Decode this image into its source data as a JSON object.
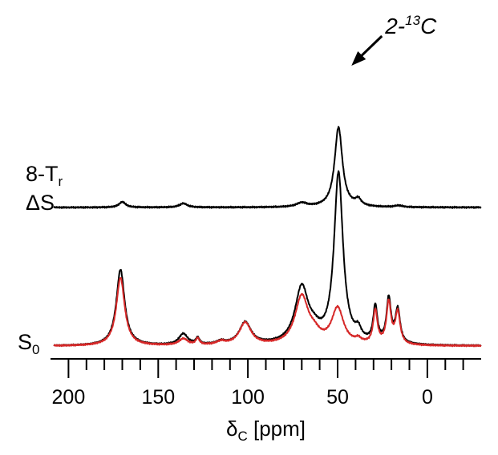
{
  "chart_data": {
    "type": "line",
    "title": "",
    "xlabel": "δC [ppm]",
    "xlabel_main": "δ",
    "xlabel_sub": "C",
    "xlabel_unit": " [ppm]",
    "xlim": [
      210,
      -30
    ],
    "x_reversed": true,
    "x_ticks": [
      200,
      150,
      100,
      50,
      0
    ],
    "x_minor_step": 10,
    "grid": false,
    "colors": {
      "black": "#000000",
      "red": "#d62828"
    },
    "trace_labels": {
      "delta_s": {
        "line1_main": "8-T",
        "line1_sub": "r",
        "line2": "ΔS"
      },
      "s0": {
        "main": "S",
        "sub": "0"
      }
    },
    "annotation": {
      "prefix": "2-",
      "superscript": "13",
      "suffix": "C",
      "points_to_ppm": 49
    },
    "series": [
      {
        "id": "delta_s",
        "color": "#000000",
        "baseline": 0,
        "peaks": [
          {
            "ppm": 49.5,
            "height": 100,
            "width": 2.6
          },
          {
            "ppm": 38.5,
            "height": 8,
            "width": 2.0
          },
          {
            "ppm": 170,
            "height": 7,
            "width": 2.2
          },
          {
            "ppm": 136,
            "height": 5,
            "width": 2.6
          },
          {
            "ppm": 70,
            "height": 5,
            "width": 3.5
          },
          {
            "ppm": 16,
            "height": 2,
            "width": 2.5
          }
        ]
      },
      {
        "id": "s0_black",
        "color": "#000000",
        "baseline": 0,
        "peaks": [
          {
            "ppm": 49.5,
            "height": 213,
            "width": 3.0
          },
          {
            "ppm": 171,
            "height": 95,
            "width": 2.8
          },
          {
            "ppm": 70,
            "height": 70,
            "width": 4.5
          },
          {
            "ppm": 63,
            "height": 10,
            "width": 4.0
          },
          {
            "ppm": 101.5,
            "height": 28,
            "width": 4.0
          },
          {
            "ppm": 136,
            "height": 14,
            "width": 3.0
          },
          {
            "ppm": 29,
            "height": 45,
            "width": 1.4
          },
          {
            "ppm": 21.5,
            "height": 55,
            "width": 1.5
          },
          {
            "ppm": 16.5,
            "height": 42,
            "width": 1.6
          },
          {
            "ppm": 38.5,
            "height": 12,
            "width": 2.0
          },
          {
            "ppm": 128,
            "height": 8,
            "width": 1.2
          },
          {
            "ppm": 115,
            "height": 4,
            "width": 3.0
          }
        ]
      },
      {
        "id": "s0_red",
        "color": "#d62828",
        "baseline": 0,
        "peaks": [
          {
            "ppm": 50,
            "height": 45,
            "width": 4.0
          },
          {
            "ppm": 171,
            "height": 85,
            "width": 2.8
          },
          {
            "ppm": 70,
            "height": 60,
            "width": 4.5
          },
          {
            "ppm": 63,
            "height": 10,
            "width": 4.0
          },
          {
            "ppm": 101.5,
            "height": 28,
            "width": 4.0
          },
          {
            "ppm": 136,
            "height": 8,
            "width": 3.0
          },
          {
            "ppm": 29,
            "height": 42,
            "width": 1.4
          },
          {
            "ppm": 21.5,
            "height": 52,
            "width": 1.5
          },
          {
            "ppm": 16.5,
            "height": 40,
            "width": 1.6
          },
          {
            "ppm": 38.5,
            "height": 5,
            "width": 2.0
          },
          {
            "ppm": 128,
            "height": 8,
            "width": 1.2
          },
          {
            "ppm": 115,
            "height": 4,
            "width": 3.0
          }
        ]
      }
    ]
  }
}
